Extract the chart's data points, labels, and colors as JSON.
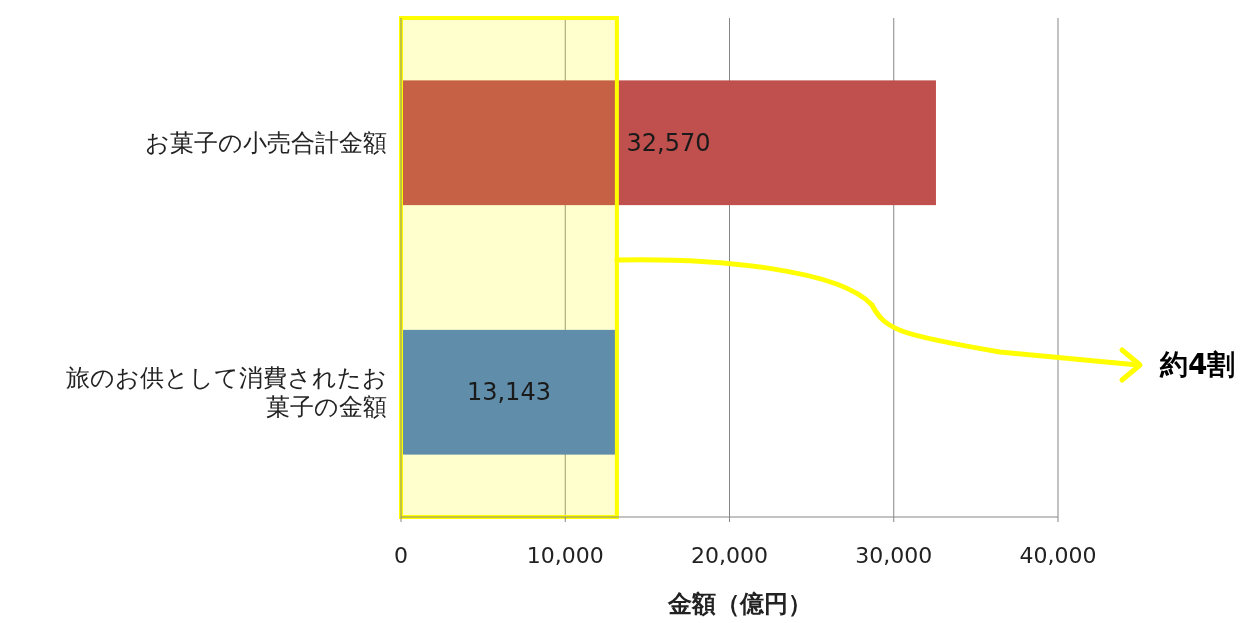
{
  "chart_data": {
    "type": "bar",
    "orientation": "horizontal",
    "categories": [
      "お菓子の小売合計金額",
      "旅のお供として消費されたお菓子の金額"
    ],
    "values": [
      32570,
      13143
    ],
    "colors": [
      "#c0504d",
      "#4f81bd"
    ],
    "value_labels": [
      "32,570",
      "13,143"
    ],
    "xlabel": "金額（億円）",
    "xlim": [
      0,
      40000
    ],
    "xticks": [
      0,
      {
        "value": 10000,
        "label": "10,000"
      },
      {
        "value": 20000,
        "label": "20,000"
      },
      {
        "value": 30000,
        "label": "30,000"
      },
      {
        "value": 40000,
        "label": "40,000"
      }
    ],
    "grid": "x",
    "bands": [
      {
        "axis": "x",
        "from": 0,
        "to": 13143,
        "color": "#ffff00"
      }
    ],
    "annotations": [
      "約4割"
    ]
  }
}
